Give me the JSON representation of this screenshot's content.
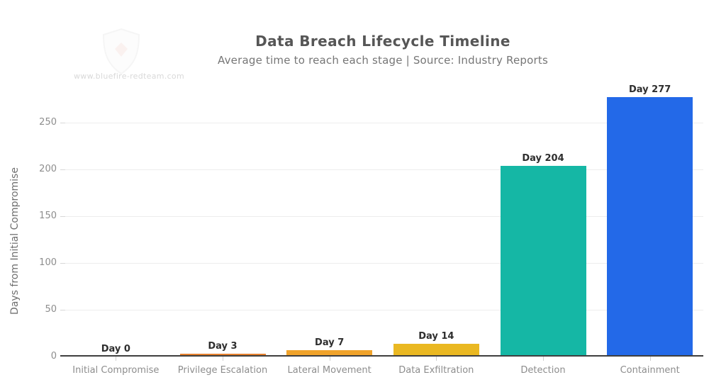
{
  "header": {
    "title": "Data Breach Lifecycle Timeline",
    "subtitle": "Average time to reach each stage | Source: Industry Reports"
  },
  "watermark": {
    "url": "www.bluefire-redteam.com"
  },
  "chart_data": {
    "type": "bar",
    "title": "Data Breach Lifecycle Timeline",
    "subtitle": "Average time to reach each stage | Source: Industry Reports",
    "categories": [
      "Initial Compromise",
      "Privilege Escalation",
      "Lateral Movement",
      "Data Exfiltration",
      "Detection",
      "Containment"
    ],
    "values": [
      0,
      3,
      7,
      14,
      204,
      277
    ],
    "bar_labels": [
      "Day 0",
      "Day 3",
      "Day 7",
      "Day 14",
      "Day 204",
      "Day 277"
    ],
    "bar_colors": [
      null,
      "#e6802d",
      "#f0a32b",
      "#eab822",
      "#15b7a5",
      "#2369e8"
    ],
    "xlabel": "",
    "ylabel": "Days from Initial Compromise",
    "ylim": [
      0,
      277
    ],
    "yticks": [
      0,
      50,
      100,
      150,
      200,
      250
    ],
    "grid": true,
    "legend": false
  },
  "colors": {
    "axis_line": "#3f3f3f",
    "gridline": "#ededed",
    "tick_text": "#8d8d8d",
    "title_text": "#565656",
    "subtitle_text": "#767676",
    "bar_label_text": "#2e2e2e",
    "watermark_text": "#d9d9d9"
  }
}
